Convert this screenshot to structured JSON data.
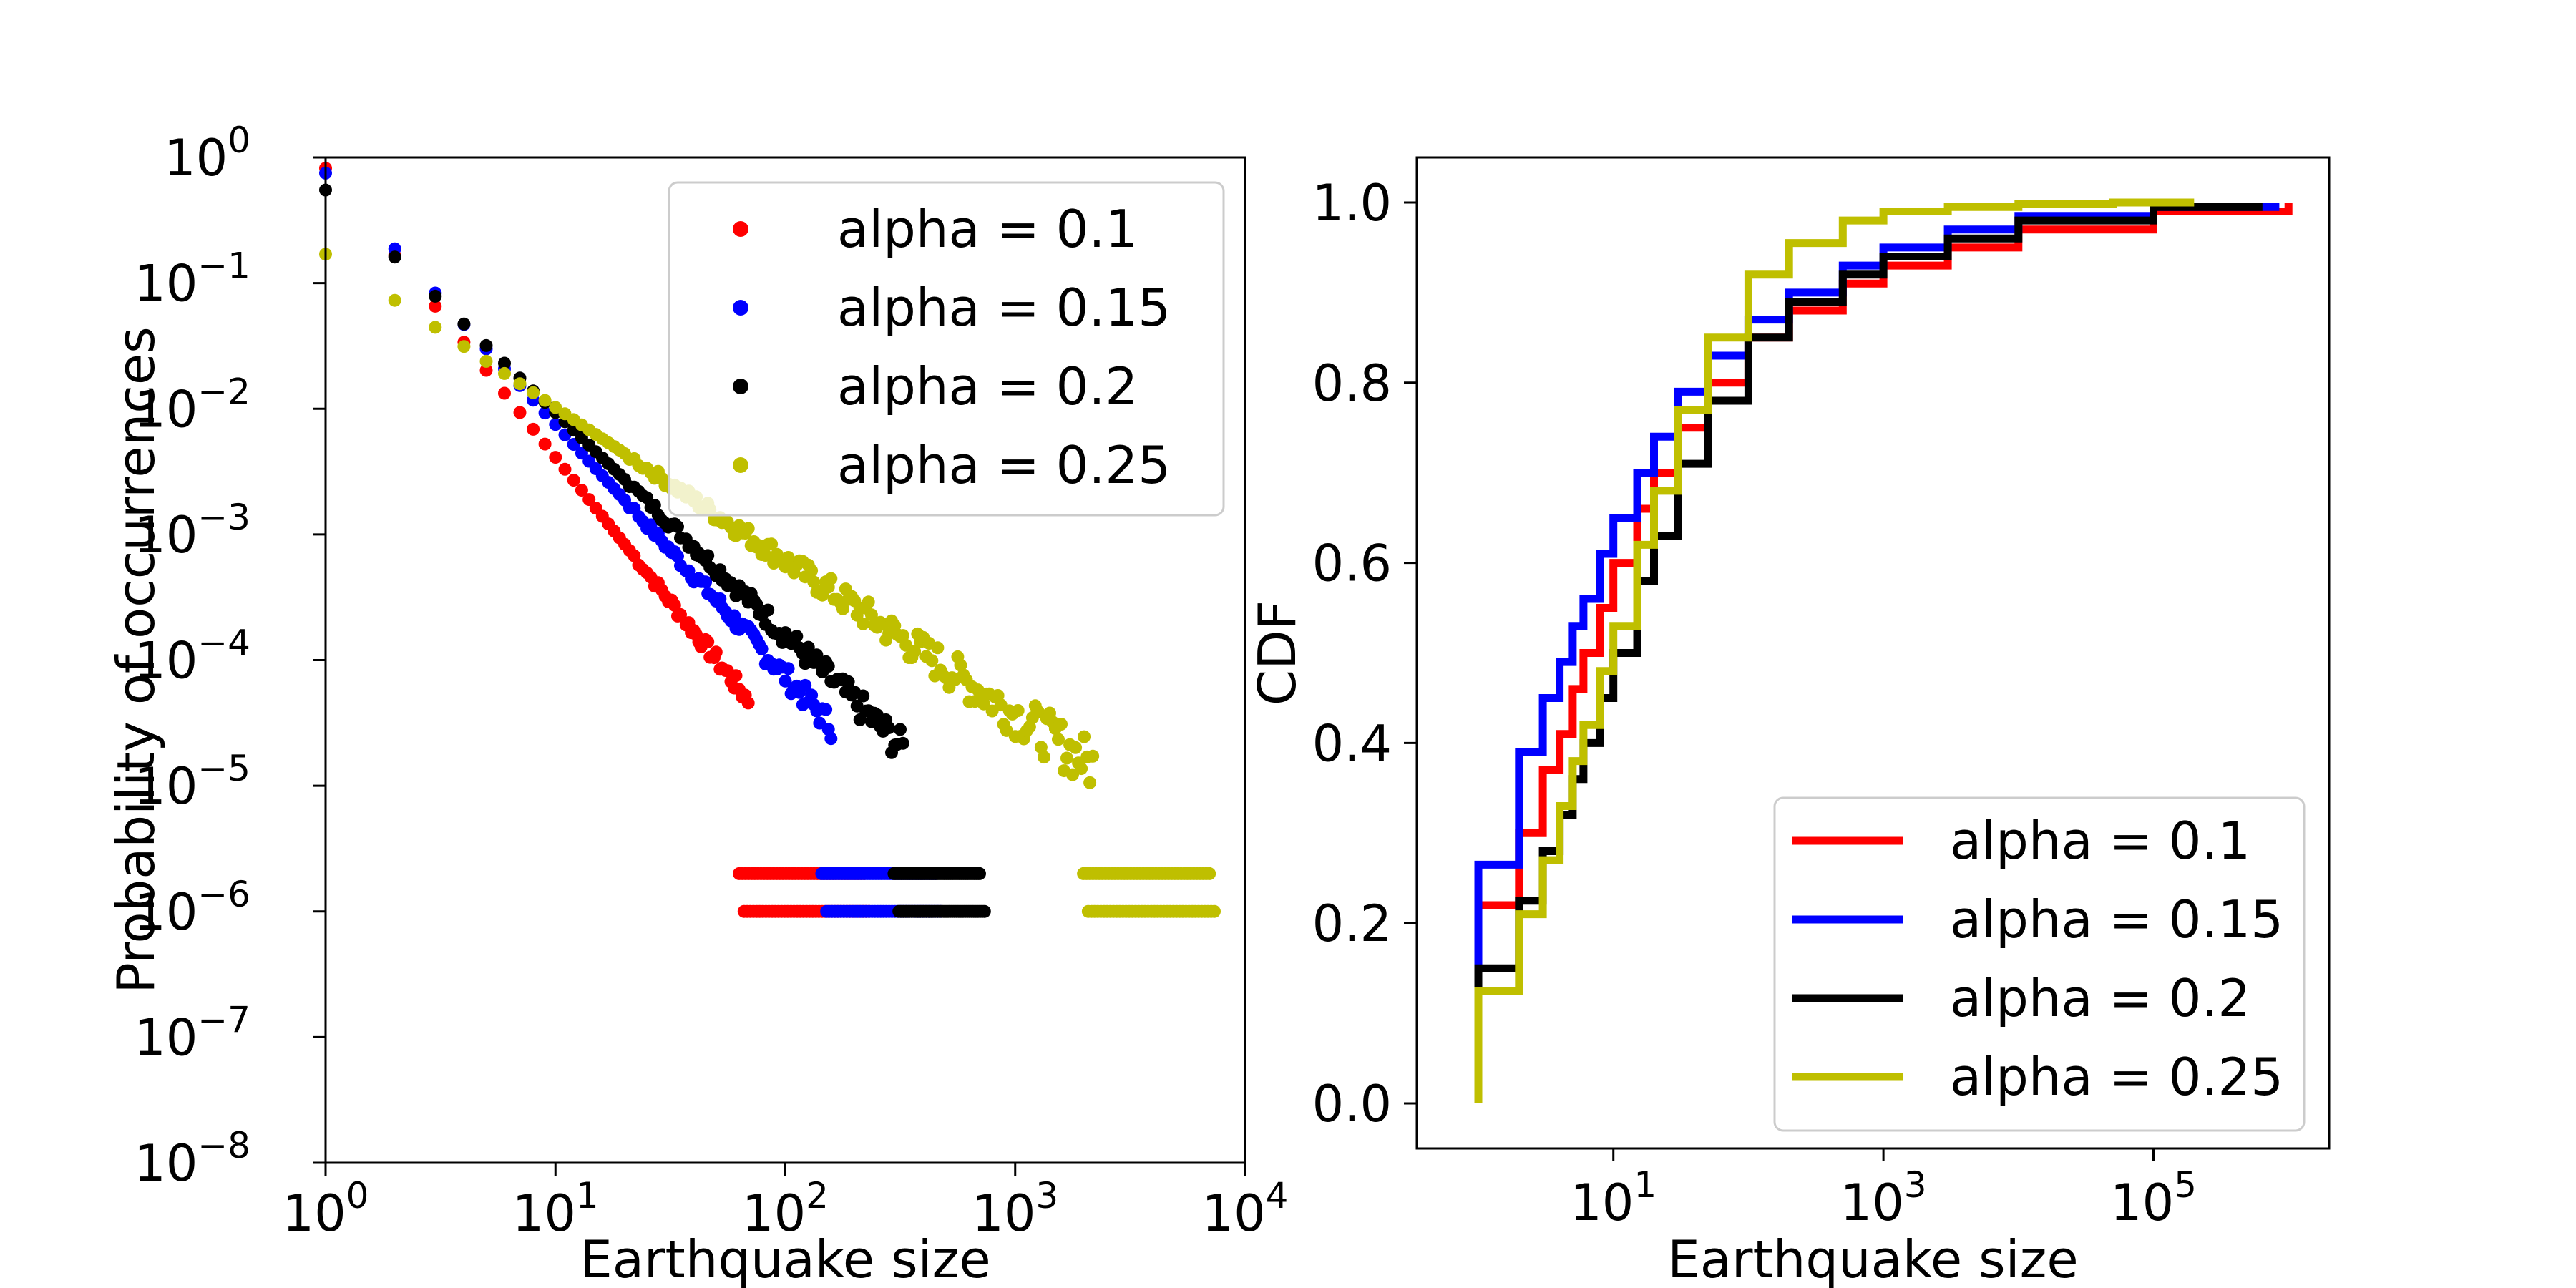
{
  "chart_data": [
    {
      "type": "scatter",
      "xlabel": "Earthquake size",
      "ylabel": "Probability of occurrences",
      "xscale": "log",
      "yscale": "log",
      "xlim": [
        1,
        10000
      ],
      "ylim": [
        1e-08,
        1
      ],
      "xticks": [
        {
          "value": 1,
          "label": "10",
          "exp": "0"
        },
        {
          "value": 10,
          "label": "10",
          "exp": "1"
        },
        {
          "value": 100,
          "label": "10",
          "exp": "2"
        },
        {
          "value": 1000,
          "label": "10",
          "exp": "3"
        },
        {
          "value": 10000,
          "label": "10",
          "exp": "4"
        }
      ],
      "yticks": [
        {
          "value": 1,
          "label": "10",
          "exp": "0"
        },
        {
          "value": 0.1,
          "label": "10",
          "exp": "−1"
        },
        {
          "value": 0.01,
          "label": "10",
          "exp": "−2"
        },
        {
          "value": 0.001,
          "label": "10",
          "exp": "−3"
        },
        {
          "value": 0.0001,
          "label": "10",
          "exp": "−4"
        },
        {
          "value": 1e-05,
          "label": "10",
          "exp": "−5"
        },
        {
          "value": 1e-06,
          "label": "10",
          "exp": "−6"
        },
        {
          "value": 1e-07,
          "label": "10",
          "exp": "−7"
        },
        {
          "value": 1e-08,
          "label": "10",
          "exp": "−8"
        }
      ],
      "grid": false,
      "legend_position": "top-right",
      "series": [
        {
          "name": "alpha = 0.1",
          "color": "#ff0000",
          "a": 0.82,
          "slope": -2.3,
          "xmax": 70,
          "tail": {
            "x": [
              70,
              80,
              90,
              100,
              110,
              125,
              140,
              160,
              180,
              200,
              220
            ],
            "y_floor1": 2e-06,
            "y_floor2": 1e-06
          }
        },
        {
          "name": "alpha = 0.15",
          "color": "#0000ff",
          "a": 0.75,
          "slope": -2.0,
          "xmax": 160,
          "tail": {
            "x": [
              160,
              190,
              220,
              260,
              300,
              350,
              400,
              450
            ],
            "y_floor1": 2e-06,
            "y_floor2": 1e-06
          }
        },
        {
          "name": "alpha = 0.2",
          "color": "#000000",
          "a": 0.55,
          "slope": -1.77,
          "xmax": 330,
          "tail": {
            "x": [
              330,
              380,
              440,
              500,
              560,
              620,
              700
            ],
            "y_floor1": 2e-06,
            "y_floor2": 1e-06
          }
        },
        {
          "name": "alpha = 0.25",
          "color": "#bfbf00",
          "a": 0.17,
          "slope": -1.22,
          "xmax": 2200,
          "tail": {
            "x": [
              2200,
              2600,
              3000,
              3600,
              4200,
              5000,
              6000,
              7000
            ],
            "y_floor1": 2e-06,
            "y_floor2": 1e-06
          }
        }
      ]
    },
    {
      "type": "line",
      "drawstyle": "steps-post",
      "xlabel": "Earthquake size",
      "ylabel": "CDF",
      "xscale": "log",
      "xlim": [
        0.35,
        2000000
      ],
      "ylim": [
        -0.05,
        1.05
      ],
      "xticks": [
        {
          "value": 10,
          "label": "10",
          "exp": "1"
        },
        {
          "value": 1000,
          "label": "10",
          "exp": "3"
        },
        {
          "value": 100000,
          "label": "10",
          "exp": "5"
        }
      ],
      "yticks": [
        {
          "value": 0.0,
          "label": "0.0"
        },
        {
          "value": 0.2,
          "label": "0.2"
        },
        {
          "value": 0.4,
          "label": "0.4"
        },
        {
          "value": 0.6,
          "label": "0.6"
        },
        {
          "value": 0.8,
          "label": "0.8"
        },
        {
          "value": 1.0,
          "label": "1.0"
        }
      ],
      "grid": false,
      "legend_position": "lower-right",
      "series": [
        {
          "name": "alpha = 0.1",
          "color": "#ff0000",
          "x": [
            1,
            2,
            3,
            4,
            5,
            6,
            8,
            10,
            15,
            20,
            30,
            50,
            100,
            200,
            500,
            1000,
            3000,
            10000,
            100000,
            1000000
          ],
          "y": [
            0.22,
            0.3,
            0.37,
            0.41,
            0.46,
            0.5,
            0.55,
            0.6,
            0.66,
            0.7,
            0.75,
            0.8,
            0.85,
            0.88,
            0.91,
            0.93,
            0.95,
            0.97,
            0.99,
            1.0
          ]
        },
        {
          "name": "alpha = 0.15",
          "color": "#0000ff",
          "x": [
            1,
            2,
            3,
            4,
            5,
            6,
            8,
            10,
            15,
            20,
            30,
            50,
            100,
            200,
            500,
            1000,
            3000,
            10000,
            100000,
            800000
          ],
          "y": [
            0.265,
            0.39,
            0.45,
            0.49,
            0.53,
            0.56,
            0.61,
            0.65,
            0.7,
            0.74,
            0.79,
            0.83,
            0.87,
            0.9,
            0.93,
            0.95,
            0.97,
            0.985,
            0.995,
            1.0
          ]
        },
        {
          "name": "alpha = 0.2",
          "color": "#000000",
          "x": [
            1,
            2,
            3,
            4,
            5,
            6,
            8,
            10,
            15,
            20,
            30,
            50,
            100,
            200,
            500,
            1000,
            3000,
            10000,
            100000,
            600000
          ],
          "y": [
            0.15,
            0.225,
            0.28,
            0.32,
            0.36,
            0.4,
            0.45,
            0.5,
            0.58,
            0.63,
            0.71,
            0.78,
            0.85,
            0.89,
            0.92,
            0.94,
            0.96,
            0.98,
            0.995,
            1.0
          ]
        },
        {
          "name": "alpha = 0.25",
          "color": "#bfbf00",
          "x": [
            1,
            2,
            3,
            4,
            5,
            6,
            8,
            10,
            15,
            20,
            30,
            50,
            100,
            200,
            500,
            1000,
            3000,
            10000,
            50000,
            200000
          ],
          "y": [
            0.125,
            0.21,
            0.27,
            0.33,
            0.38,
            0.42,
            0.48,
            0.53,
            0.62,
            0.68,
            0.77,
            0.85,
            0.92,
            0.955,
            0.98,
            0.99,
            0.995,
            0.998,
            1.0,
            1.0
          ]
        }
      ]
    }
  ]
}
